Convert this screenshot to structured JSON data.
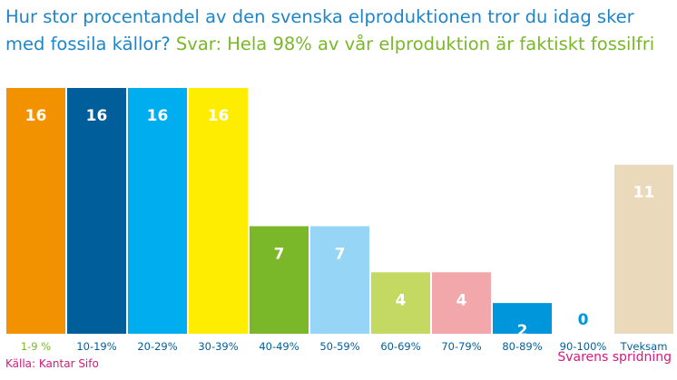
{
  "question": "Hur stor procentandel av den svenska elproduktionen tror du idag sker med fossila källor?",
  "answer": "Svar: Hela 98% av vår elproduktion är faktiskt fossilfri",
  "source": "Källa: Kantar Sifo",
  "spread_label": "Svarens spridning",
  "chart_data": {
    "type": "bar",
    "categories": [
      "1-9 %",
      "10-19%",
      "20-29%",
      "30-39%",
      "40-49%",
      "50-59%",
      "60-69%",
      "70-79%",
      "80-89%",
      "90-100%",
      "Tveksam"
    ],
    "values": [
      16,
      16,
      16,
      16,
      7,
      7,
      4,
      4,
      2,
      0,
      11
    ],
    "colors": [
      "#f39200",
      "#005f9b",
      "#00aeef",
      "#ffed00",
      "#7ab829",
      "#96d5f5",
      "#c4d961",
      "#f2a7ab",
      "#0096dc",
      "#0096dc",
      "#ead9bb"
    ],
    "tick_colors": [
      "#7ab829",
      "#005f9b",
      "#005f9b",
      "#005f9b",
      "#005f9b",
      "#005f9b",
      "#005f9b",
      "#005f9b",
      "#005f9b",
      "#005f9b",
      "#005f9b"
    ],
    "title": "",
    "xlabel": "",
    "ylabel": "",
    "ylim": [
      0,
      16
    ],
    "grid": false,
    "legend": "none"
  }
}
